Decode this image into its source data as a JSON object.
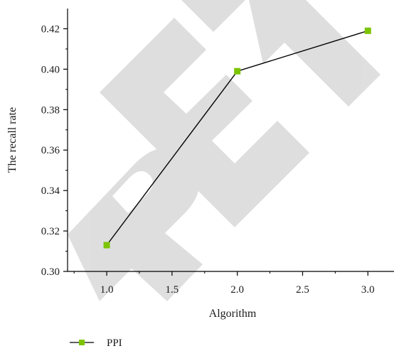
{
  "chart_data": {
    "type": "line",
    "title": "",
    "xlabel": "Algorithm",
    "ylabel": "The recall rate",
    "xlim": [
      0.7,
      3.2
    ],
    "ylim": [
      0.3,
      0.43
    ],
    "x_ticks": [
      1.0,
      1.5,
      2.0,
      2.5,
      3.0
    ],
    "x_tick_labels": [
      "1.0",
      "1.5",
      "2.0",
      "2.5",
      "3.0"
    ],
    "y_ticks": [
      0.3,
      0.32,
      0.34,
      0.36,
      0.38,
      0.4,
      0.42
    ],
    "y_tick_labels": [
      "0.30",
      "0.32",
      "0.34",
      "0.36",
      "0.38",
      "0.40",
      "0.42"
    ],
    "grid": false,
    "legend_position": "bottom-left",
    "series": [
      {
        "name": "PPI",
        "x": [
          1.0,
          2.0,
          3.0
        ],
        "values": [
          0.313,
          0.399,
          0.419
        ],
        "line_color": "#000000",
        "marker": "square",
        "marker_color": "#7cc400"
      }
    ]
  },
  "watermark": {
    "text": "RETRACTED",
    "color": "#d9d9d9"
  }
}
